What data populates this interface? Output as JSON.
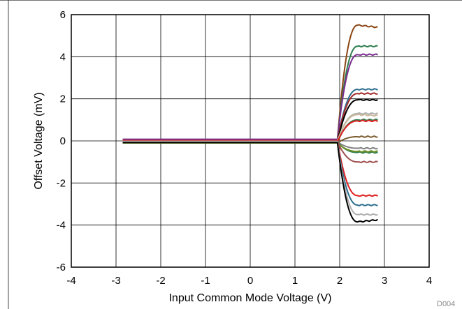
{
  "figure_id": "D004",
  "chart_data": {
    "type": "line",
    "xlabel": "Input Common Mode Voltage (V)",
    "ylabel": "Offset Voltage (mV)",
    "xlim": [
      -4,
      4
    ],
    "ylim": [
      -6,
      6
    ],
    "x_ticks": [
      "-4",
      "-3",
      "-2",
      "-1",
      "0",
      "1",
      "2",
      "3",
      "4"
    ],
    "y_ticks": [
      "-6",
      "-4",
      "-2",
      "0",
      "2",
      "4",
      "6"
    ],
    "grid": true,
    "legend": "none",
    "x_start": -2.85,
    "x_end": 2.85,
    "transition_start": 1.95,
    "series": [
      {
        "color": "#8B4513",
        "flat": 0.05,
        "final": 5.4,
        "peak": 5.5
      },
      {
        "color": "#2E7D4F",
        "flat": 0.05,
        "final": 4.5,
        "peak": 4.5
      },
      {
        "color": "#7B2D8E",
        "flat": 0.08,
        "final": 4.1,
        "peak": 4.1
      },
      {
        "color": "#2E6E8E",
        "flat": 0.0,
        "final": 2.45,
        "peak": 2.45
      },
      {
        "color": "#A52A2A",
        "flat": 0.02,
        "final": 2.25,
        "peak": 2.25
      },
      {
        "color": "#000000",
        "flat": -0.05,
        "final": 1.95,
        "peak": 1.95
      },
      {
        "color": "#B0B0B0",
        "flat": -0.02,
        "final": 1.3,
        "peak": 1.3
      },
      {
        "color": "#C8B89A",
        "flat": 0.0,
        "final": 1.2,
        "peak": 1.25
      },
      {
        "color": "#2E7D4F",
        "flat": -0.08,
        "final": 1.0,
        "peak": 1.0
      },
      {
        "color": "#E02020",
        "flat": -0.05,
        "final": 0.95,
        "peak": 0.95
      },
      {
        "color": "#7A5C2E",
        "flat": -0.1,
        "final": 0.2,
        "peak": 0.2
      },
      {
        "color": "#808080",
        "flat": -0.05,
        "final": -0.35,
        "peak": -0.35
      },
      {
        "color": "#2E7D4F",
        "flat": -0.06,
        "final": -0.55,
        "peak": -0.55
      },
      {
        "color": "#6B8E23",
        "flat": -0.1,
        "final": -0.5,
        "peak": -0.5
      },
      {
        "color": "#A05050",
        "flat": -0.04,
        "final": -1.0,
        "peak": -1.0
      },
      {
        "color": "#E02020",
        "flat": 0.0,
        "final": -2.6,
        "peak": -2.6
      },
      {
        "color": "#2E6E8E",
        "flat": -0.05,
        "final": -3.05,
        "peak": -3.05
      },
      {
        "color": "#B0B0B0",
        "flat": -0.02,
        "final": -3.5,
        "peak": -3.5
      },
      {
        "color": "#000000",
        "flat": -0.08,
        "final": -3.75,
        "peak": -3.85
      }
    ]
  }
}
